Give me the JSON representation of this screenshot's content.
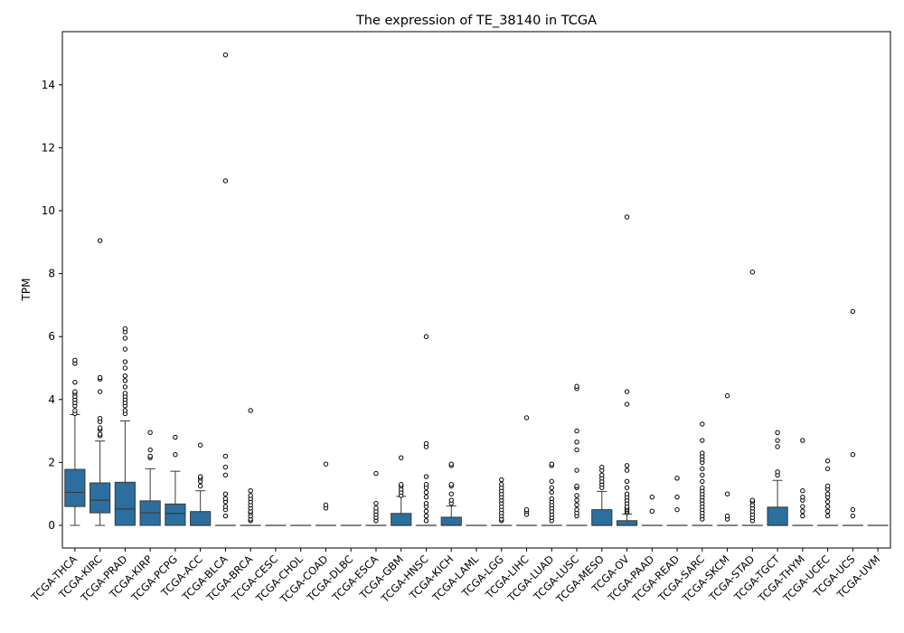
{
  "chart_data": {
    "type": "box",
    "title": "The expression of TE_38140 in TCGA",
    "xlabel": "",
    "ylabel": "TPM",
    "ylim": [
      -0.75,
      15.7
    ],
    "yticks": [
      0,
      2,
      4,
      6,
      8,
      10,
      12,
      14
    ],
    "grid": false,
    "box_color": "#2c6e9e",
    "categories": [
      "TCGA-THCA",
      "TCGA-KIRC",
      "TCGA-PRAD",
      "TCGA-KIRP",
      "TCGA-PCPG",
      "TCGA-ACC",
      "TCGA-BLCA",
      "TCGA-BRCA",
      "TCGA-CESC",
      "TCGA-CHOL",
      "TCGA-COAD",
      "TCGA-DLBC",
      "TCGA-ESCA",
      "TCGA-GBM",
      "TCGA-HNSC",
      "TCGA-KICH",
      "TCGA-LAML",
      "TCGA-LGG",
      "TCGA-LIHC",
      "TCGA-LUAD",
      "TCGA-LUSC",
      "TCGA-MESO",
      "TCGA-OV",
      "TCGA-PAAD",
      "TCGA-READ",
      "TCGA-SARC",
      "TCGA-SKCM",
      "TCGA-STAD",
      "TCGA-TGCT",
      "TCGA-THYM",
      "TCGA-UCEC",
      "TCGA-UCS",
      "TCGA-UVM"
    ],
    "boxes": [
      {
        "q1": 0.6,
        "median": 1.05,
        "q3": 1.78,
        "wlow": 0,
        "whigh": 3.52,
        "outliers": [
          3.55,
          3.65,
          3.8,
          3.9,
          4.0,
          4.1,
          4.2,
          4.25,
          4.55,
          5.15,
          5.25
        ]
      },
      {
        "q1": 0.4,
        "median": 0.8,
        "q3": 1.35,
        "wlow": 0,
        "whigh": 2.68,
        "outliers": [
          2.85,
          2.9,
          3.05,
          3.1,
          3.3,
          3.4,
          4.25,
          4.65,
          4.7,
          9.05
        ]
      },
      {
        "q1": 0,
        "median": 0.52,
        "q3": 1.37,
        "wlow": 0,
        "whigh": 3.32,
        "outliers": [
          3.55,
          3.65,
          3.8,
          3.9,
          4.0,
          4.1,
          4.2,
          4.4,
          4.6,
          4.75,
          5.0,
          5.2,
          5.6,
          5.95,
          6.15,
          6.25
        ]
      },
      {
        "q1": 0,
        "median": 0.4,
        "q3": 0.78,
        "wlow": 0,
        "whigh": 1.8,
        "outliers": [
          2.15,
          2.2,
          2.4,
          2.95
        ]
      },
      {
        "q1": 0,
        "median": 0.38,
        "q3": 0.68,
        "wlow": 0,
        "whigh": 1.72,
        "outliers": [
          2.25,
          2.8
        ]
      },
      {
        "q1": 0,
        "median": 0,
        "q3": 0.44,
        "wlow": 0,
        "whigh": 1.1,
        "outliers": [
          1.25,
          1.4,
          1.5,
          1.55,
          2.55
        ]
      },
      {
        "q1": 0,
        "median": 0,
        "q3": 0,
        "wlow": 0,
        "whigh": 0,
        "outliers": [
          0.3,
          0.5,
          0.6,
          0.75,
          0.85,
          1.0,
          1.6,
          1.85,
          2.2,
          10.95,
          14.95
        ]
      },
      {
        "q1": 0,
        "median": 0,
        "q3": 0,
        "wlow": 0,
        "whigh": 0,
        "outliers": [
          0.15,
          0.2,
          0.3,
          0.4,
          0.45,
          0.55,
          0.65,
          0.75,
          0.85,
          0.95,
          1.1,
          3.65
        ]
      },
      {
        "q1": 0,
        "median": 0,
        "q3": 0,
        "wlow": 0,
        "whigh": 0,
        "outliers": []
      },
      {
        "q1": 0,
        "median": 0,
        "q3": 0,
        "wlow": 0,
        "whigh": 0,
        "outliers": []
      },
      {
        "q1": 0,
        "median": 0,
        "q3": 0,
        "wlow": 0,
        "whigh": 0,
        "outliers": [
          0.55,
          0.65,
          1.95
        ]
      },
      {
        "q1": 0,
        "median": 0,
        "q3": 0,
        "wlow": 0,
        "whigh": 0,
        "outliers": []
      },
      {
        "q1": 0,
        "median": 0,
        "q3": 0,
        "wlow": 0,
        "whigh": 0,
        "outliers": [
          0.15,
          0.25,
          0.35,
          0.45,
          0.55,
          0.7,
          1.65
        ]
      },
      {
        "q1": 0,
        "median": 0,
        "q3": 0.38,
        "wlow": 0,
        "whigh": 0.92,
        "outliers": [
          0.95,
          1.05,
          1.15,
          1.25,
          1.3,
          2.15
        ]
      },
      {
        "q1": 0,
        "median": 0,
        "q3": 0,
        "wlow": 0,
        "whigh": 0,
        "outliers": [
          0.15,
          0.3,
          0.45,
          0.6,
          0.7,
          0.9,
          1.05,
          1.2,
          1.3,
          1.55,
          2.5,
          2.6,
          6.0
        ]
      },
      {
        "q1": 0,
        "median": 0,
        "q3": 0.26,
        "wlow": 0,
        "whigh": 0.62,
        "outliers": [
          0.7,
          0.8,
          1.0,
          1.25,
          1.3,
          1.9,
          1.95
        ]
      },
      {
        "q1": 0,
        "median": 0,
        "q3": 0,
        "wlow": 0,
        "whigh": 0,
        "outliers": []
      },
      {
        "q1": 0,
        "median": 0,
        "q3": 0,
        "wlow": 0,
        "whigh": 0,
        "outliers": [
          0.15,
          0.2,
          0.3,
          0.4,
          0.5,
          0.6,
          0.7,
          0.8,
          0.9,
          1.0,
          1.1,
          1.2,
          1.3,
          1.45
        ]
      },
      {
        "q1": 0,
        "median": 0,
        "q3": 0,
        "wlow": 0,
        "whigh": 0,
        "outliers": [
          0.35,
          0.45,
          0.5,
          3.42
        ]
      },
      {
        "q1": 0,
        "median": 0,
        "q3": 0,
        "wlow": 0,
        "whigh": 0,
        "outliers": [
          0.15,
          0.25,
          0.35,
          0.45,
          0.55,
          0.65,
          0.75,
          0.85,
          1.05,
          1.2,
          1.4,
          1.9,
          1.95
        ]
      },
      {
        "q1": 0,
        "median": 0,
        "q3": 0,
        "wlow": 0,
        "whigh": 0,
        "outliers": [
          0.3,
          0.4,
          0.5,
          0.65,
          0.8,
          0.95,
          1.2,
          1.25,
          1.75,
          2.4,
          2.65,
          3.0,
          4.35,
          4.42
        ]
      },
      {
        "q1": 0,
        "median": 0,
        "q3": 0.5,
        "wlow": 0,
        "whigh": 1.08,
        "outliers": [
          1.2,
          1.3,
          1.4,
          1.5,
          1.6,
          1.75,
          1.85
        ]
      },
      {
        "q1": 0,
        "median": 0,
        "q3": 0.15,
        "wlow": 0,
        "whigh": 0.36,
        "outliers": [
          0.4,
          0.45,
          0.5,
          0.55,
          0.6,
          0.7,
          0.8,
          0.9,
          1.0,
          1.2,
          1.4,
          1.75,
          1.9,
          3.85,
          4.25,
          9.8
        ]
      },
      {
        "q1": 0,
        "median": 0,
        "q3": 0,
        "wlow": 0,
        "whigh": 0,
        "outliers": [
          0.45,
          0.9
        ]
      },
      {
        "q1": 0,
        "median": 0,
        "q3": 0,
        "wlow": 0,
        "whigh": 0,
        "outliers": [
          0.5,
          0.9,
          1.5
        ]
      },
      {
        "q1": 0,
        "median": 0,
        "q3": 0,
        "wlow": 0,
        "whigh": 0,
        "outliers": [
          0.2,
          0.3,
          0.4,
          0.5,
          0.6,
          0.7,
          0.8,
          0.9,
          1.0,
          1.1,
          1.2,
          1.4,
          1.6,
          1.8,
          2.0,
          2.1,
          2.2,
          2.3,
          2.7,
          3.22
        ]
      },
      {
        "q1": 0,
        "median": 0,
        "q3": 0,
        "wlow": 0,
        "whigh": 0,
        "outliers": [
          0.2,
          0.3,
          1.0,
          4.12
        ]
      },
      {
        "q1": 0,
        "median": 0,
        "q3": 0,
        "wlow": 0,
        "whigh": 0,
        "outliers": [
          0.15,
          0.25,
          0.35,
          0.45,
          0.55,
          0.65,
          0.75,
          0.8,
          8.05
        ]
      },
      {
        "q1": 0,
        "median": 0,
        "q3": 0.58,
        "wlow": 0,
        "whigh": 1.43,
        "outliers": [
          1.6,
          1.7,
          2.5,
          2.7,
          2.95
        ]
      },
      {
        "q1": 0,
        "median": 0,
        "q3": 0,
        "wlow": 0,
        "whigh": 0,
        "outliers": [
          0.3,
          0.45,
          0.6,
          0.8,
          0.9,
          1.1,
          2.7
        ]
      },
      {
        "q1": 0,
        "median": 0,
        "q3": 0,
        "wlow": 0,
        "whigh": 0,
        "outliers": [
          0.3,
          0.45,
          0.6,
          0.75,
          0.9,
          1.0,
          1.15,
          1.25,
          1.8,
          2.05
        ]
      },
      {
        "q1": 0,
        "median": 0,
        "q3": 0,
        "wlow": 0,
        "whigh": 0,
        "outliers": [
          0.3,
          0.5,
          2.25,
          6.8
        ]
      },
      {
        "q1": 0,
        "median": 0,
        "q3": 0,
        "wlow": 0,
        "whigh": 0,
        "outliers": []
      }
    ]
  }
}
